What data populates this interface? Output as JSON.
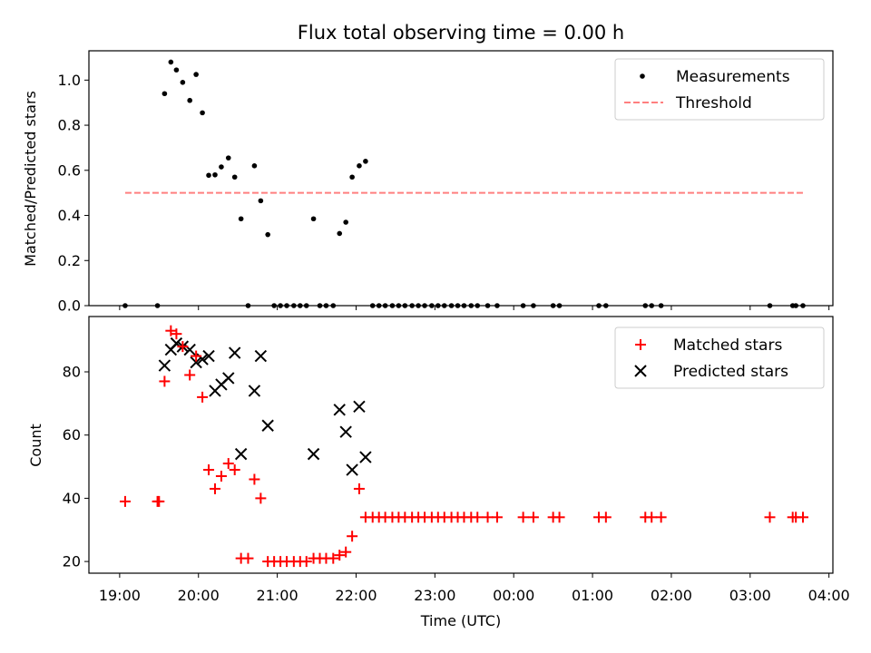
{
  "title": "Flux total observing time = 0.00 h",
  "chart_data": [
    {
      "type": "scatter",
      "ylabel": "Matched/Predicted stars",
      "ylim": [
        0,
        1.13
      ],
      "yticks": [
        0,
        0.2,
        0.4,
        0.6,
        0.8,
        1.0
      ],
      "yticklabels": [
        "0.0",
        "0.2",
        "0.4",
        "0.6",
        "0.8",
        "1.0"
      ],
      "xlim": [
        18.61,
        28.05
      ],
      "legend": {
        "placement": "top-right",
        "measurements": "Measurements",
        "threshold": "Threshold"
      },
      "threshold": {
        "value": 0.5,
        "x_start": 19.07,
        "x_end": 27.67,
        "color": "#ff7f7f"
      },
      "series": [
        {
          "name": "Measurements",
          "color": "#000000",
          "x": [
            19.07,
            19.48,
            19.57,
            19.65,
            19.72,
            19.8,
            19.89,
            19.97,
            20.05,
            20.13,
            20.21,
            20.29,
            20.38,
            20.46,
            20.54,
            20.63,
            20.71,
            20.79,
            20.88,
            20.96,
            21.04,
            21.12,
            21.21,
            21.29,
            21.37,
            21.46,
            21.54,
            21.62,
            21.71,
            21.79,
            21.87,
            21.95,
            22.04,
            22.12,
            22.21,
            22.29,
            22.37,
            22.46,
            22.54,
            22.62,
            22.71,
            22.79,
            22.87,
            22.96,
            23.04,
            23.12,
            23.21,
            23.29,
            23.37,
            23.46,
            23.54,
            23.67,
            23.79,
            24.12,
            24.25,
            24.5,
            24.58,
            25.08,
            25.17,
            25.67,
            25.75,
            25.87,
            27.25,
            27.54,
            27.58,
            27.67
          ],
          "y": [
            0,
            0,
            0.94,
            1.08,
            1.045,
            0.99,
            0.91,
            1.025,
            0.855,
            0.578,
            0.58,
            0.615,
            0.655,
            0.57,
            0.385,
            0,
            0.62,
            0.465,
            0.315,
            0,
            0,
            0,
            0,
            0,
            0,
            0.385,
            0,
            0,
            0,
            0.32,
            0.37,
            0.57,
            0.62,
            0.64,
            0,
            0,
            0,
            0,
            0,
            0,
            0,
            0,
            0,
            0,
            0,
            0,
            0,
            0,
            0,
            0,
            0,
            0,
            0,
            0,
            0,
            0,
            0,
            0,
            0,
            0,
            0,
            0,
            0,
            0,
            0,
            0
          ]
        }
      ]
    },
    {
      "type": "scatter",
      "ylabel": "Count",
      "xlabel": "Time (UTC)",
      "ylim": [
        16.3,
        97.5
      ],
      "yticks": [
        20,
        40,
        60,
        80
      ],
      "yticklabels": [
        "20",
        "40",
        "60",
        "80"
      ],
      "xlim": [
        18.61,
        28.05
      ],
      "xticks": [
        19,
        20,
        21,
        22,
        23,
        24,
        25,
        26,
        27,
        28
      ],
      "xticklabels": [
        "19:00",
        "20:00",
        "21:00",
        "22:00",
        "23:00",
        "00:00",
        "01:00",
        "02:00",
        "03:00",
        "04:00"
      ],
      "legend": {
        "placement": "top-right"
      },
      "series": [
        {
          "name": "Matched stars",
          "color": "#ff0000",
          "marker": "plus",
          "x": [
            19.07,
            19.48,
            19.5,
            19.57,
            19.65,
            19.72,
            19.8,
            19.89,
            19.97,
            20.05,
            20.13,
            20.21,
            20.29,
            20.38,
            20.46,
            20.54,
            20.63,
            20.71,
            20.79,
            20.88,
            20.96,
            21.04,
            21.12,
            21.21,
            21.29,
            21.37,
            21.46,
            21.54,
            21.62,
            21.71,
            21.79,
            21.87,
            21.95,
            22.04,
            22.12,
            22.21,
            22.29,
            22.37,
            22.46,
            22.54,
            22.62,
            22.71,
            22.79,
            22.87,
            22.96,
            23.04,
            23.12,
            23.21,
            23.29,
            23.37,
            23.46,
            23.54,
            23.67,
            23.79,
            24.12,
            24.25,
            24.5,
            24.58,
            25.08,
            25.17,
            25.67,
            25.75,
            25.87,
            27.25,
            27.54,
            27.58,
            27.67
          ],
          "y": [
            39,
            39,
            39,
            77,
            93,
            92,
            88,
            79,
            85,
            72,
            49,
            43,
            47,
            51,
            49,
            21,
            21,
            46,
            40,
            20,
            20,
            20,
            20,
            20,
            20,
            20,
            21,
            21,
            21,
            21,
            22,
            23,
            28,
            43,
            34,
            34,
            34,
            34,
            34,
            34,
            34,
            34,
            34,
            34,
            34,
            34,
            34,
            34,
            34,
            34,
            34,
            34,
            34,
            34,
            34,
            34,
            34,
            34,
            34,
            34,
            34,
            34,
            34,
            34,
            34,
            34,
            34
          ]
        },
        {
          "name": "Predicted stars",
          "color": "#000000",
          "marker": "x",
          "x": [
            19.57,
            19.65,
            19.72,
            19.8,
            19.89,
            19.97,
            20.05,
            20.13,
            20.21,
            20.29,
            20.38,
            20.46,
            20.54,
            20.71,
            20.79,
            20.88,
            21.46,
            21.79,
            21.87,
            21.95,
            22.04,
            22.12
          ],
          "y": [
            82,
            87,
            89,
            88,
            87,
            83,
            84,
            85,
            74,
            76,
            78,
            86,
            54,
            74,
            85,
            63,
            54,
            68,
            61,
            49,
            69,
            53
          ]
        }
      ]
    }
  ]
}
